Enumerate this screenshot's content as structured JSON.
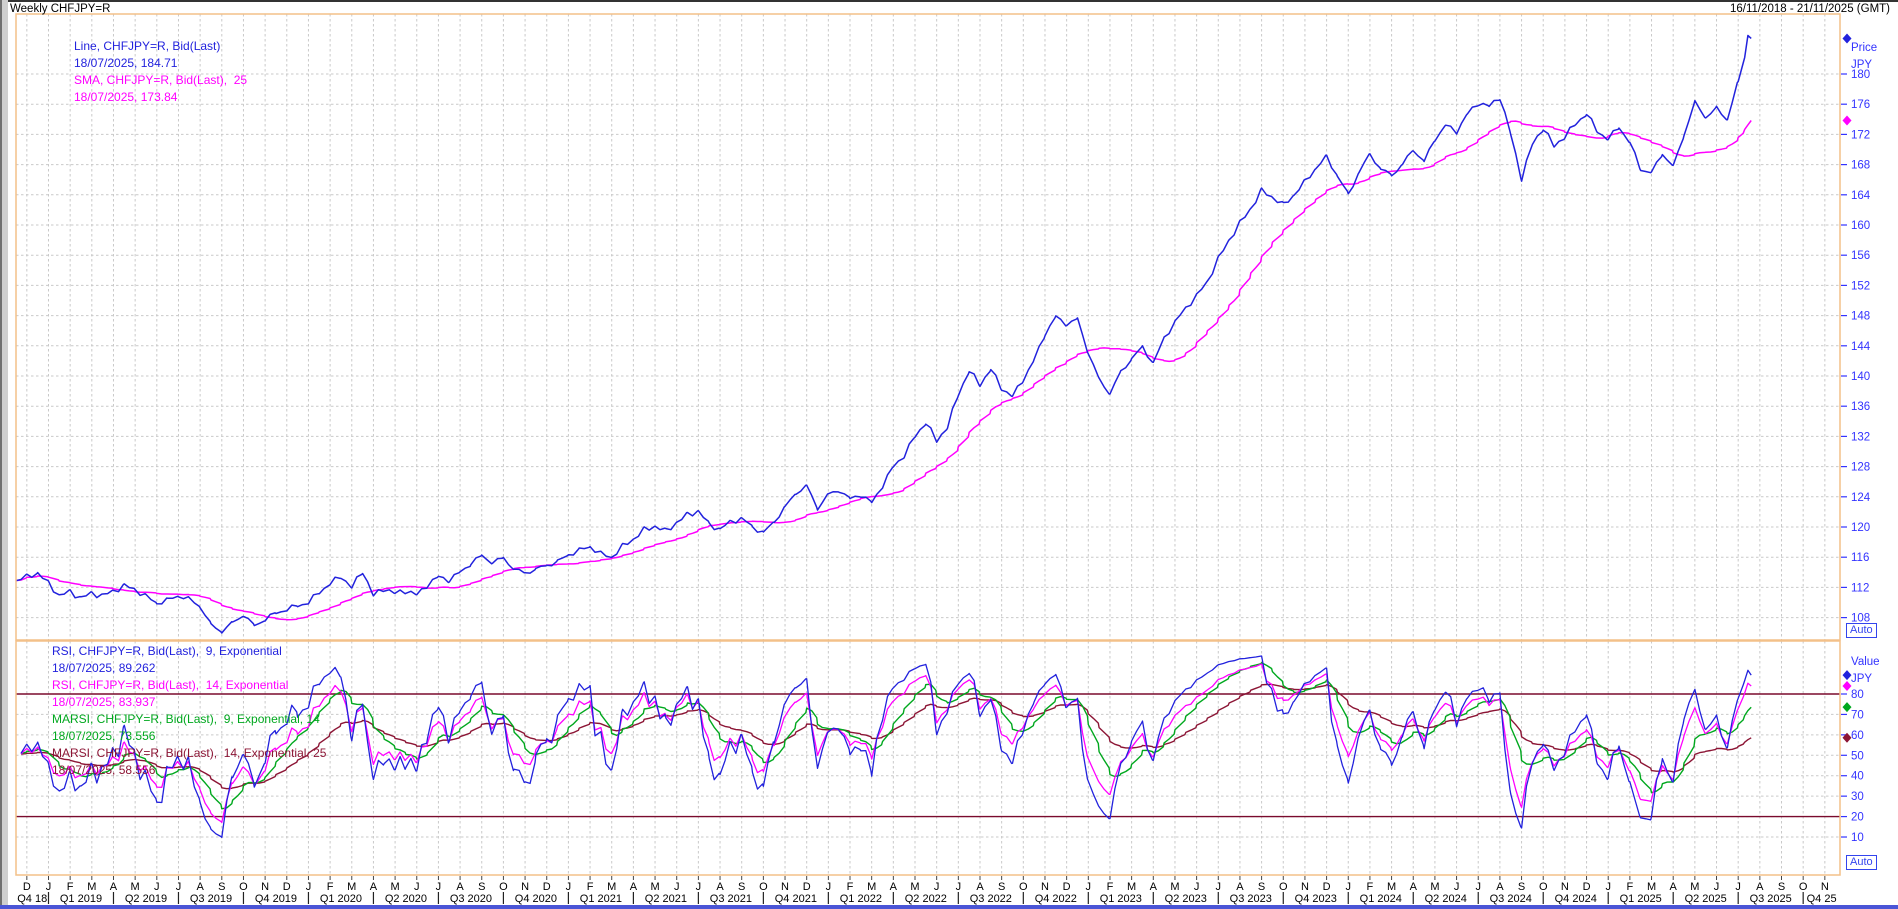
{
  "window": {
    "title": "Weekly CHFJPY=R",
    "date_range": "16/11/2018 - 21/11/2025 (GMT)"
  },
  "colors": {
    "line_blue": "#2222dd",
    "magenta": "#ff00ff",
    "green": "#00a81e",
    "maroon": "#8c1535",
    "level_maroon": "#7a0a2d",
    "axis_blue": "#3333ff",
    "grid": "#c9c9c9",
    "panel_border": "#f3c089",
    "black_text": "#000000"
  },
  "price_panel": {
    "axis_title_line1": "Price",
    "axis_title_line2": "JPY",
    "auto_label": "Auto",
    "ticks": [
      180,
      176,
      172,
      168,
      164,
      160,
      156,
      152,
      148,
      144,
      140,
      136,
      132,
      128,
      124,
      120,
      116,
      112,
      108
    ],
    "legend": [
      {
        "label": "Line, CHFJPY=R, Bid(Last)",
        "value_line": "18/07/2025, 184.71",
        "color": "#2222dd"
      },
      {
        "label": "SMA, CHFJPY=R, Bid(Last),  25",
        "value_line": "18/07/2025, 173.84",
        "color": "#ff00ff"
      }
    ]
  },
  "rsi_panel": {
    "axis_title_line1": "Value",
    "axis_title_line2": "JPY",
    "auto_label": "Auto",
    "ticks": [
      80,
      70,
      60,
      50,
      40,
      30,
      20,
      10
    ],
    "levels": [
      80,
      20
    ],
    "legend": [
      {
        "label": "RSI, CHFJPY=R, Bid(Last),  9, Exponential",
        "value_line": "18/07/2025, 89.262",
        "color": "#2222dd"
      },
      {
        "label": "RSI, CHFJPY=R, Bid(Last),  14, Exponential",
        "value_line": "18/07/2025, 83.937",
        "color": "#ff00ff"
      },
      {
        "label": "MARSI, CHFJPY=R, Bid(Last),  9, Exponential, 14",
        "value_line": "18/07/2025, 73.556",
        "color": "#00a81e"
      },
      {
        "label": "MARSI, CHFJPY=R, Bid(Last),  14, Exponential, 25",
        "value_line": "18/07/2025, 58.556",
        "color": "#8c1535"
      }
    ]
  },
  "x_axis": {
    "month_cycle": [
      "D",
      "J",
      "F",
      "M",
      "A",
      "M",
      "J",
      "J",
      "A",
      "S",
      "O",
      "N"
    ],
    "month_repeat": 7,
    "quarters": [
      "Q4 18",
      "Q1 2019",
      "Q2 2019",
      "Q3 2019",
      "Q4 2019",
      "Q1 2020",
      "Q2 2020",
      "Q3 2020",
      "Q4 2020",
      "Q1 2021",
      "Q2 2021",
      "Q3 2021",
      "Q4 2021",
      "Q1 2022",
      "Q2 2022",
      "Q3 2022",
      "Q4 2022",
      "Q1 2023",
      "Q2 2023",
      "Q3 2023",
      "Q4 2023",
      "Q1 2024",
      "Q2 2024",
      "Q3 2024",
      "Q4 2024",
      "Q1 2025",
      "Q2 2025",
      "Q3 2025",
      "Q4 25"
    ]
  },
  "chart_data": {
    "type": "line",
    "title": "Weekly CHFJPY=R",
    "x_range": {
      "start": "16/11/2018",
      "end": "21/11/2025",
      "unit": "months_from_start",
      "t_max": 84.2,
      "t_last_data": 80.1
    },
    "price_axis": {
      "label": "Price JPY",
      "ticks": [
        180,
        176,
        172,
        168,
        164,
        160,
        156,
        152,
        148,
        144,
        140,
        136,
        132,
        128,
        124,
        120,
        116,
        112,
        108
      ],
      "ylim": [
        105,
        188
      ]
    },
    "rsi_axis": {
      "label": "Value JPY",
      "ticks": [
        80,
        70,
        60,
        50,
        40,
        30,
        20,
        10
      ],
      "levels": [
        80,
        20
      ],
      "ylim": [
        -9,
        106
      ]
    },
    "grid": true,
    "series": [
      {
        "name": "Line, CHFJPY=R, Bid(Last)",
        "panel": "price",
        "color": "#2222dd",
        "kind": "price",
        "last_date": "18/07/2025",
        "last_value": 184.71,
        "points": [
          [
            0,
            112.9
          ],
          [
            0.5,
            113.4
          ],
          [
            1,
            113.9
          ],
          [
            1.5,
            112.5
          ],
          [
            2,
            110.9
          ],
          [
            2.5,
            111.4
          ],
          [
            3,
            110.6
          ],
          [
            3.5,
            111.2
          ],
          [
            4,
            110.9
          ],
          [
            4.5,
            111.5
          ],
          [
            5,
            112.2
          ],
          [
            5.5,
            111.7
          ],
          [
            6,
            110.8
          ],
          [
            6.5,
            109.9
          ],
          [
            7,
            110.3
          ],
          [
            7.5,
            110.9
          ],
          [
            8,
            110.4
          ],
          [
            8.5,
            109.5
          ],
          [
            9,
            107.0
          ],
          [
            9.5,
            106.2
          ],
          [
            10,
            107.3
          ],
          [
            10.5,
            108.4
          ],
          [
            11,
            106.9
          ],
          [
            11.5,
            107.8
          ],
          [
            12,
            108.6
          ],
          [
            12.5,
            109.1
          ],
          [
            13,
            109.6
          ],
          [
            13.5,
            110.0
          ],
          [
            14,
            111.4
          ],
          [
            14.5,
            112.5
          ],
          [
            15,
            113.5
          ],
          [
            15.5,
            112.0
          ],
          [
            16,
            114.2
          ],
          [
            16.5,
            110.9
          ],
          [
            17,
            111.9
          ],
          [
            17.5,
            111.2
          ],
          [
            18,
            111.6
          ],
          [
            18.5,
            111.0
          ],
          [
            19,
            112.4
          ],
          [
            19.5,
            113.4
          ],
          [
            20,
            113.0
          ],
          [
            20.5,
            114.0
          ],
          [
            21,
            115.2
          ],
          [
            21.5,
            116.2
          ],
          [
            22,
            115.3
          ],
          [
            22.5,
            115.9
          ],
          [
            23,
            114.4
          ],
          [
            23.5,
            113.9
          ],
          [
            24,
            114.4
          ],
          [
            24.5,
            114.9
          ],
          [
            25,
            115.4
          ],
          [
            25.5,
            116.3
          ],
          [
            26,
            116.9
          ],
          [
            26.5,
            117.4
          ],
          [
            27,
            116.4
          ],
          [
            27.5,
            116.0
          ],
          [
            28,
            117.4
          ],
          [
            28.5,
            118.4
          ],
          [
            29,
            119.6
          ],
          [
            29.5,
            120.1
          ],
          [
            30,
            119.4
          ],
          [
            30.5,
            120.6
          ],
          [
            31,
            121.6
          ],
          [
            31.5,
            122.1
          ],
          [
            32,
            120.3
          ],
          [
            32.5,
            119.7
          ],
          [
            33,
            120.7
          ],
          [
            33.5,
            121.1
          ],
          [
            34,
            120.0
          ],
          [
            34.5,
            119.2
          ],
          [
            35,
            120.7
          ],
          [
            35.5,
            122.6
          ],
          [
            36,
            124.5
          ],
          [
            36.5,
            125.4
          ],
          [
            37,
            122.5
          ],
          [
            37.5,
            124.3
          ],
          [
            38,
            124.9
          ],
          [
            38.5,
            123.7
          ],
          [
            39,
            124.3
          ],
          [
            39.5,
            123.2
          ],
          [
            40,
            125.5
          ],
          [
            40.5,
            128.0
          ],
          [
            41,
            129.5
          ],
          [
            41.5,
            132.0
          ],
          [
            42,
            133.9
          ],
          [
            42.5,
            131.4
          ],
          [
            43,
            133.3
          ],
          [
            43.5,
            137.6
          ],
          [
            44,
            140.7
          ],
          [
            44.5,
            138.9
          ],
          [
            45,
            140.9
          ],
          [
            45.5,
            138.4
          ],
          [
            46,
            137.3
          ],
          [
            46.5,
            139.6
          ],
          [
            47,
            142.1
          ],
          [
            47.5,
            145.6
          ],
          [
            48,
            147.8
          ],
          [
            48.5,
            146.9
          ],
          [
            49,
            147.5
          ],
          [
            49.5,
            143.1
          ],
          [
            50,
            139.5
          ],
          [
            50.5,
            137.7
          ],
          [
            51,
            140.5
          ],
          [
            51.5,
            142.3
          ],
          [
            52,
            143.8
          ],
          [
            52.5,
            141.7
          ],
          [
            53,
            145.0
          ],
          [
            53.5,
            147.1
          ],
          [
            54,
            149.0
          ],
          [
            54.5,
            150.6
          ],
          [
            55,
            152.5
          ],
          [
            55.5,
            155.5
          ],
          [
            56,
            158.0
          ],
          [
            56.5,
            160.2
          ],
          [
            57,
            162.2
          ],
          [
            57.5,
            164.5
          ],
          [
            58,
            163.7
          ],
          [
            58.5,
            162.6
          ],
          [
            59,
            164.0
          ],
          [
            59.5,
            165.7
          ],
          [
            60,
            167.5
          ],
          [
            60.5,
            169.0
          ],
          [
            61,
            166.5
          ],
          [
            61.5,
            164.0
          ],
          [
            62,
            167.0
          ],
          [
            62.5,
            169.4
          ],
          [
            63,
            167.4
          ],
          [
            63.5,
            166.6
          ],
          [
            64,
            168.0
          ],
          [
            64.5,
            170.0
          ],
          [
            65,
            168.4
          ],
          [
            65.5,
            171.4
          ],
          [
            66,
            173.2
          ],
          [
            66.5,
            172.4
          ],
          [
            67,
            174.7
          ],
          [
            67.5,
            176.2
          ],
          [
            68,
            175.7
          ],
          [
            68.5,
            177.0
          ],
          [
            69,
            172.0
          ],
          [
            69.5,
            166.2
          ],
          [
            70,
            170.7
          ],
          [
            70.5,
            172.9
          ],
          [
            71,
            170.4
          ],
          [
            71.5,
            171.8
          ],
          [
            72,
            173.4
          ],
          [
            72.5,
            174.8
          ],
          [
            73,
            172.4
          ],
          [
            73.5,
            171.4
          ],
          [
            74,
            173.0
          ],
          [
            74.5,
            170.9
          ],
          [
            75,
            167.4
          ],
          [
            75.5,
            166.9
          ],
          [
            76,
            169.5
          ],
          [
            76.5,
            167.7
          ],
          [
            77,
            172.0
          ],
          [
            77.5,
            176.2
          ],
          [
            78,
            174.3
          ],
          [
            78.5,
            175.4
          ],
          [
            79,
            174.0
          ],
          [
            79.5,
            179.0
          ],
          [
            79.8,
            182.2
          ],
          [
            79.95,
            185.1
          ],
          [
            80.1,
            184.71
          ]
        ]
      },
      {
        "name": "SMA, CHFJPY=R, Bid(Last), 25",
        "panel": "price",
        "color": "#ff00ff",
        "kind": "sma",
        "period": 25,
        "last_date": "18/07/2025",
        "last_value": 173.84
      },
      {
        "name": "RSI, CHFJPY=R, Bid(Last), 9, Exponential",
        "panel": "rsi",
        "color": "#2222dd",
        "kind": "rsi",
        "period": 9,
        "last_date": "18/07/2025",
        "last_value": 89.262
      },
      {
        "name": "RSI, CHFJPY=R, Bid(Last), 14, Exponential",
        "panel": "rsi",
        "color": "#ff00ff",
        "kind": "rsi",
        "period": 14,
        "last_date": "18/07/2025",
        "last_value": 83.937
      },
      {
        "name": "MARSI, CHFJPY=R, Bid(Last), 9, Exponential, 14",
        "panel": "rsi",
        "color": "#00a81e",
        "kind": "marsi",
        "rsi_period": 9,
        "ema_period": 14,
        "last_date": "18/07/2025",
        "last_value": 73.556
      },
      {
        "name": "MARSI, CHFJPY=R, Bid(Last), 14, Exponential, 25",
        "panel": "rsi",
        "color": "#8c1535",
        "kind": "marsi",
        "rsi_period": 14,
        "ema_period": 25,
        "last_date": "18/07/2025",
        "last_value": 58.556
      }
    ]
  }
}
